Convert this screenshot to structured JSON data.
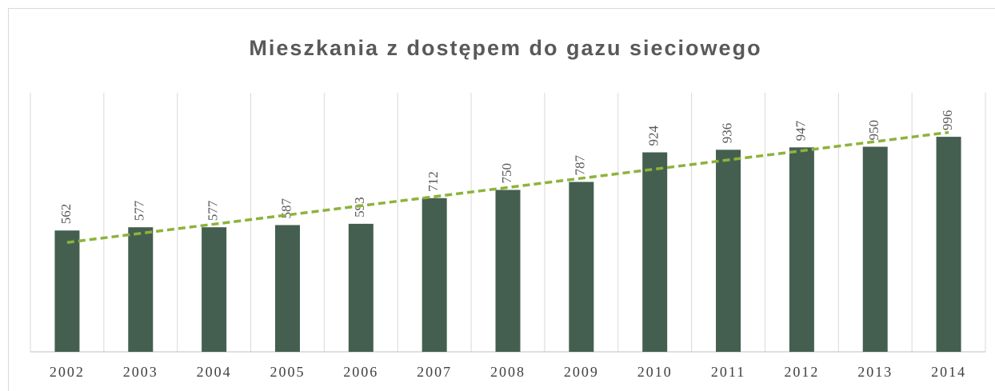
{
  "chart_data": {
    "type": "bar",
    "title": "Mieszkania z dostępem do gazu sieciowego",
    "categories": [
      "2002",
      "2003",
      "2004",
      "2005",
      "2006",
      "2007",
      "2008",
      "2009",
      "2010",
      "2011",
      "2012",
      "2013",
      "2014"
    ],
    "values": [
      562,
      577,
      577,
      587,
      593,
      712,
      750,
      787,
      924,
      936,
      947,
      950,
      996
    ],
    "color": "#445f50",
    "ylim": [
      0,
      1200
    ],
    "trendline": "linear",
    "trendline_color": "#8db33a"
  }
}
